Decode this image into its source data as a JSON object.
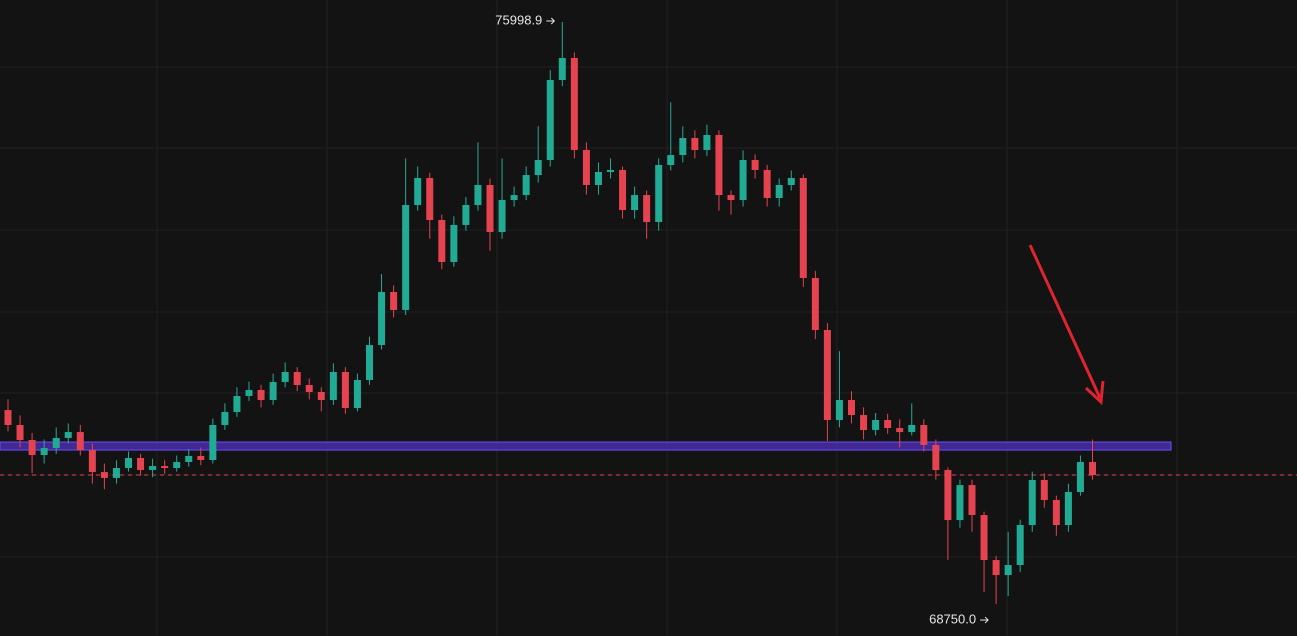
{
  "chart_data": {
    "type": "candlestick",
    "open": [
      71166,
      70980,
      70793,
      70606,
      70693,
      70818,
      70892,
      70668,
      70394,
      70320,
      70444,
      70569,
      70419,
      70469,
      70444,
      70519,
      70594,
      70544,
      70980,
      71142,
      71341,
      71416,
      71291,
      71515,
      71640,
      71478,
      71391,
      71291,
      71640,
      71191,
      71540,
      71976,
      72636,
      72412,
      73720,
      74056,
      73533,
      73010,
      73471,
      73720,
      73969,
      73383,
      73782,
      73844,
      74093,
      74280,
      75277,
      75551,
      74405,
      73969,
      74131,
      74156,
      73657,
      73844,
      73508,
      74218,
      74342,
      74554,
      74405,
      74592,
      73844,
      73782,
      74280,
      74156,
      73807,
      73969,
      74056,
      72811,
      72163,
      71042,
      71291,
      71104,
      70917,
      71042,
      70942,
      70892,
      70980,
      70731,
      70419,
      69796,
      70232,
      69859,
      69298,
      69111,
      69236,
      69734,
      70295,
      70046,
      69734,
      70145,
      70519
    ],
    "high": [
      71300,
      71100,
      70880,
      70800,
      70950,
      71000,
      70980,
      70750,
      70500,
      70540,
      70650,
      70620,
      70560,
      70540,
      70600,
      70680,
      70700,
      71060,
      71250,
      71450,
      71520,
      71480,
      71620,
      71760,
      71700,
      71560,
      71450,
      71750,
      71700,
      71620,
      72080,
      72860,
      72720,
      74300,
      74200,
      74120,
      73600,
      73580,
      73820,
      74500,
      74050,
      74300,
      73950,
      74200,
      74700,
      75400,
      75998.9,
      75620,
      74500,
      74250,
      74300,
      74200,
      73950,
      73900,
      74300,
      75000,
      74700,
      74650,
      74720,
      74650,
      73900,
      74400,
      74350,
      74220,
      74050,
      74150,
      74100,
      72900,
      72250,
      71900,
      71400,
      71200,
      71130,
      71120,
      71050,
      71250,
      71050,
      70800,
      70450,
      70300,
      70300,
      69900,
      69350,
      69650,
      69800,
      70400,
      70380,
      70100,
      70250,
      70600,
      70800
    ],
    "low": [
      70900,
      70700,
      70380,
      70500,
      70620,
      70750,
      70600,
      70250,
      70180,
      70250,
      70400,
      70350,
      70330,
      70370,
      70400,
      70460,
      70480,
      70500,
      70920,
      71080,
      71280,
      71200,
      71230,
      71450,
      71400,
      71300,
      71150,
      71230,
      71120,
      71150,
      71480,
      71920,
      72320,
      72350,
      73650,
      73300,
      72920,
      72950,
      73400,
      73650,
      73150,
      73300,
      73700,
      73780,
      74000,
      74200,
      75200,
      74300,
      73850,
      73850,
      74050,
      73550,
      73550,
      73300,
      73400,
      74150,
      74250,
      74300,
      74330,
      73650,
      73600,
      73700,
      74050,
      73700,
      73700,
      73900,
      72700,
      72050,
      70780,
      70950,
      71000,
      70800,
      70850,
      70870,
      70700,
      70850,
      70650,
      70300,
      69300,
      69700,
      69650,
      68900,
      68750,
      68850,
      69150,
      69650,
      69950,
      69600,
      69650,
      70100,
      70300
    ],
    "close": [
      70980,
      70793,
      70606,
      70693,
      70818,
      70892,
      70668,
      70394,
      70320,
      70444,
      70569,
      70419,
      70469,
      70444,
      70519,
      70594,
      70544,
      70980,
      71142,
      71341,
      71416,
      71291,
      71515,
      71640,
      71478,
      71391,
      71291,
      71640,
      71191,
      71540,
      71976,
      72636,
      72412,
      73720,
      74056,
      73533,
      73010,
      73471,
      73720,
      73969,
      73383,
      73782,
      73844,
      74093,
      74280,
      75277,
      75551,
      74405,
      73969,
      74131,
      74156,
      73657,
      73844,
      73508,
      74218,
      74342,
      74554,
      74405,
      74592,
      73844,
      73782,
      74280,
      74156,
      73807,
      73969,
      74056,
      72811,
      72163,
      71042,
      71291,
      71104,
      70917,
      71042,
      70942,
      70892,
      70980,
      70731,
      70419,
      69796,
      70232,
      69859,
      69298,
      69111,
      69236,
      69734,
      70295,
      70046,
      69734,
      70145,
      70519,
      70357
    ],
    "high_label": "75998.9",
    "low_label": "68750.0",
    "ylim": [
      68352,
      76273
    ],
    "zone": [
      70668,
      70768
    ],
    "last_price": 70357,
    "up_color": "#22ab94",
    "down_color": "#e5434f",
    "zone_color": "#4a2ea8",
    "last_price_color": "#e5434f"
  }
}
